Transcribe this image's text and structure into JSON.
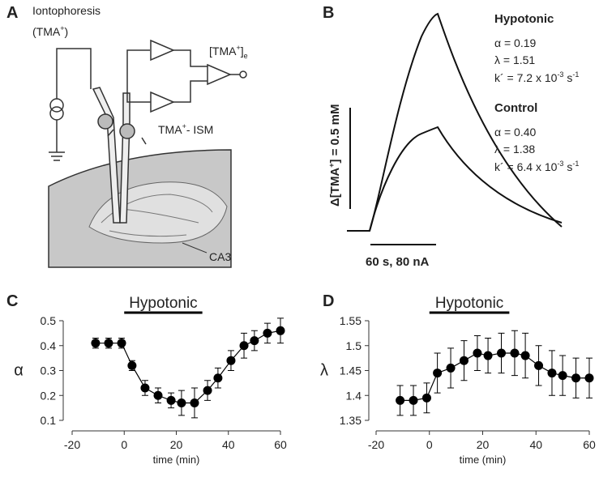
{
  "figure": {
    "panel_labels": [
      "A",
      "B",
      "C",
      "D"
    ],
    "a": {
      "iontophoresis": "Iontophoresis",
      "tma_open": "(TMA",
      "plus": "+",
      "close": ")",
      "ext_open": "[TMA",
      "ext_plus": "+",
      "ext_close": "]",
      "ext_sub": "e",
      "ism": "TMA",
      "ism_plus": "+",
      "ism_rest": "- ISM",
      "ca3": "CA3"
    },
    "b": {
      "hypotonic": "Hypotonic",
      "hyp_alpha": "α = 0.19",
      "hyp_lambda": "λ = 1.51",
      "hyp_k": "k´ = 7.2 x 10",
      "hyp_k_exp": "-3",
      "hyp_k_unit": " s",
      "hyp_k_unit_exp": "-1",
      "control": "Control",
      "con_alpha": "α = 0.40",
      "con_lambda": "λ = 1.38",
      "con_k": "k´ = 6.4 x 10",
      "con_k_exp": "-3",
      "con_k_unit": " s",
      "con_k_unit_exp": "-1",
      "scale_v": "Δ[TMA",
      "scale_v_plus": "+",
      "scale_v_rest": "] = 0.5 mM",
      "scale_h": "60 s, 80 nA"
    }
  },
  "chart_data": [
    {
      "type": "errorbar-line",
      "ylabel": "α",
      "xlabel": "time (min)",
      "annotation": {
        "text": "Hypotonic",
        "x": [
          0,
          30
        ]
      },
      "x": [
        -11,
        -6,
        -1,
        3,
        8,
        13,
        18,
        22,
        27,
        32,
        36,
        41,
        46,
        50,
        55,
        60
      ],
      "values": [
        0.41,
        0.41,
        0.41,
        0.32,
        0.23,
        0.2,
        0.18,
        0.17,
        0.17,
        0.22,
        0.27,
        0.34,
        0.4,
        0.42,
        0.45,
        0.46
      ],
      "errors": [
        0.02,
        0.02,
        0.02,
        0.02,
        0.03,
        0.03,
        0.03,
        0.05,
        0.06,
        0.04,
        0.04,
        0.04,
        0.05,
        0.04,
        0.04,
        0.05
      ],
      "color": "#000000",
      "xlim": [
        -20,
        60
      ],
      "xticks": [
        -20,
        0,
        20,
        40,
        60
      ],
      "ylim": [
        0.1,
        0.5
      ],
      "yticks": [
        0.1,
        0.2,
        0.3,
        0.4,
        0.5
      ]
    },
    {
      "type": "errorbar-line",
      "ylabel": "λ",
      "xlabel": "time (min)",
      "annotation": {
        "text": "Hypotonic",
        "x": [
          0,
          30
        ]
      },
      "x": [
        -11,
        -6,
        -1,
        3,
        8,
        13,
        18,
        22,
        27,
        32,
        36,
        41,
        46,
        50,
        55,
        60
      ],
      "values": [
        1.39,
        1.39,
        1.395,
        1.445,
        1.455,
        1.47,
        1.485,
        1.48,
        1.485,
        1.485,
        1.48,
        1.46,
        1.445,
        1.44,
        1.435,
        1.435
      ],
      "errors": [
        0.03,
        0.03,
        0.03,
        0.04,
        0.04,
        0.04,
        0.035,
        0.035,
        0.04,
        0.045,
        0.045,
        0.04,
        0.045,
        0.04,
        0.04,
        0.04
      ],
      "color": "#000000",
      "xlim": [
        -20,
        60
      ],
      "xticks": [
        -20,
        0,
        20,
        40,
        60
      ],
      "ylim": [
        1.35,
        1.55
      ],
      "yticks": [
        1.35,
        1.4,
        1.45,
        1.5,
        1.55
      ]
    }
  ]
}
